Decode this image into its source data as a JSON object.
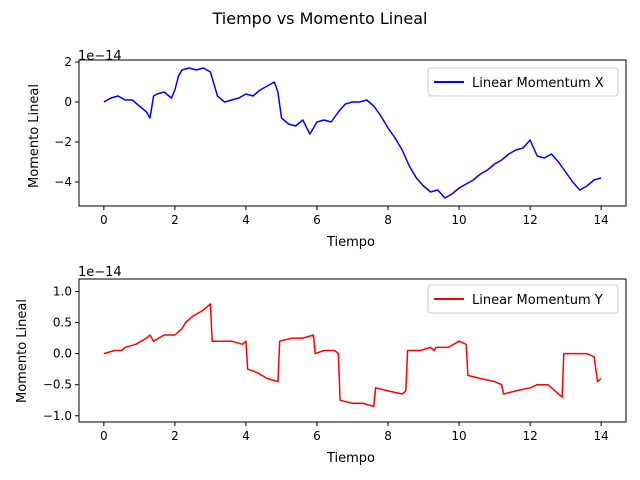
{
  "figure": {
    "title": "Tiempo vs Momento Lineal"
  },
  "chart_data": [
    {
      "type": "line",
      "xlabel": "Tiempo",
      "ylabel": "Momento Lineal",
      "offset_text": "1e−14",
      "xlim": [
        -0.7,
        14.7
      ],
      "ylim": [
        -5.2,
        2.1
      ],
      "xticks": [
        0,
        2,
        4,
        6,
        8,
        10,
        12,
        14
      ],
      "xtick_labels": [
        "0",
        "2",
        "4",
        "6",
        "8",
        "10",
        "12",
        "14"
      ],
      "yticks": [
        2,
        0,
        -2,
        -4
      ],
      "ytick_labels": [
        "2",
        "0",
        "−2",
        "−4"
      ],
      "grid": false,
      "legend_position": "top-right",
      "series": [
        {
          "name": "Linear Momentum X",
          "color": "#0000ff",
          "x": [
            0,
            0.2,
            0.4,
            0.5,
            0.6,
            0.8,
            1.0,
            1.2,
            1.3,
            1.4,
            1.5,
            1.7,
            1.9,
            2.0,
            2.1,
            2.2,
            2.4,
            2.6,
            2.8,
            3.0,
            3.2,
            3.4,
            3.6,
            3.8,
            4.0,
            4.2,
            4.4,
            4.6,
            4.8,
            4.9,
            5.0,
            5.2,
            5.4,
            5.6,
            5.8,
            6.0,
            6.2,
            6.4,
            6.6,
            6.8,
            7.0,
            7.2,
            7.4,
            7.6,
            7.8,
            8.0,
            8.2,
            8.4,
            8.6,
            8.8,
            9.0,
            9.2,
            9.4,
            9.6,
            9.8,
            10.0,
            10.2,
            10.4,
            10.6,
            10.8,
            11.0,
            11.2,
            11.4,
            11.6,
            11.8,
            12.0,
            12.2,
            12.4,
            12.6,
            12.8,
            13.0,
            13.2,
            13.4,
            13.6,
            13.8,
            14.0
          ],
          "y": [
            0.0,
            0.2,
            0.3,
            0.2,
            0.1,
            0.1,
            -0.2,
            -0.5,
            -0.8,
            0.3,
            0.4,
            0.5,
            0.2,
            0.6,
            1.3,
            1.6,
            1.7,
            1.6,
            1.7,
            1.5,
            0.3,
            0.0,
            0.1,
            0.2,
            0.4,
            0.3,
            0.6,
            0.8,
            1.0,
            0.5,
            -0.8,
            -1.1,
            -1.2,
            -0.9,
            -1.6,
            -1.0,
            -0.9,
            -1.0,
            -0.5,
            -0.1,
            0.0,
            0.0,
            0.1,
            -0.2,
            -0.7,
            -1.3,
            -1.8,
            -2.4,
            -3.2,
            -3.8,
            -4.2,
            -4.5,
            -4.4,
            -4.8,
            -4.6,
            -4.3,
            -4.1,
            -3.9,
            -3.6,
            -3.4,
            -3.1,
            -2.9,
            -2.6,
            -2.4,
            -2.3,
            -1.9,
            -2.7,
            -2.8,
            -2.6,
            -3.0,
            -3.5,
            -4.0,
            -4.4,
            -4.2,
            -3.9,
            -3.8
          ]
        }
      ]
    },
    {
      "type": "line",
      "xlabel": "Tiempo",
      "ylabel": "Momento Lineal",
      "offset_text": "1e−14",
      "xlim": [
        -0.7,
        14.7
      ],
      "ylim": [
        -1.1,
        1.2
      ],
      "xticks": [
        0,
        2,
        4,
        6,
        8,
        10,
        12,
        14
      ],
      "xtick_labels": [
        "0",
        "2",
        "4",
        "6",
        "8",
        "10",
        "12",
        "14"
      ],
      "yticks": [
        1.0,
        0.5,
        0.0,
        -0.5,
        -1.0
      ],
      "ytick_labels": [
        "1.0",
        "0.5",
        "0.0",
        "−0.5",
        "−1.0"
      ],
      "grid": false,
      "legend_position": "top-right",
      "series": [
        {
          "name": "Linear Momentum Y",
          "color": "#ff0000",
          "x": [
            0,
            0.3,
            0.5,
            0.6,
            0.9,
            1.2,
            1.3,
            1.4,
            1.7,
            2.0,
            2.2,
            2.3,
            2.5,
            2.8,
            3.0,
            3.05,
            3.3,
            3.6,
            3.9,
            4.0,
            4.05,
            4.3,
            4.6,
            4.9,
            4.95,
            5.3,
            5.6,
            5.9,
            5.95,
            6.2,
            6.5,
            6.6,
            6.65,
            7.0,
            7.3,
            7.6,
            7.65,
            8.0,
            8.4,
            8.5,
            8.55,
            8.9,
            9.2,
            9.3,
            9.35,
            9.7,
            10.0,
            10.2,
            10.25,
            10.6,
            11.0,
            11.2,
            11.25,
            11.6,
            12.0,
            12.2,
            12.5,
            12.9,
            12.95,
            13.3,
            13.6,
            13.8,
            13.9,
            14.0
          ],
          "y": [
            0.0,
            0.05,
            0.05,
            0.1,
            0.15,
            0.25,
            0.3,
            0.2,
            0.3,
            0.3,
            0.4,
            0.5,
            0.6,
            0.7,
            0.8,
            0.2,
            0.2,
            0.2,
            0.15,
            0.2,
            -0.25,
            -0.3,
            -0.4,
            -0.45,
            0.2,
            0.25,
            0.25,
            0.3,
            0.0,
            0.05,
            0.05,
            0.0,
            -0.75,
            -0.8,
            -0.8,
            -0.85,
            -0.55,
            -0.6,
            -0.65,
            -0.6,
            0.05,
            0.05,
            0.1,
            0.05,
            0.1,
            0.1,
            0.2,
            0.15,
            -0.35,
            -0.4,
            -0.45,
            -0.5,
            -0.65,
            -0.6,
            -0.55,
            -0.5,
            -0.5,
            -0.7,
            0.0,
            0.0,
            0.0,
            -0.05,
            -0.45,
            -0.4
          ]
        }
      ]
    }
  ]
}
